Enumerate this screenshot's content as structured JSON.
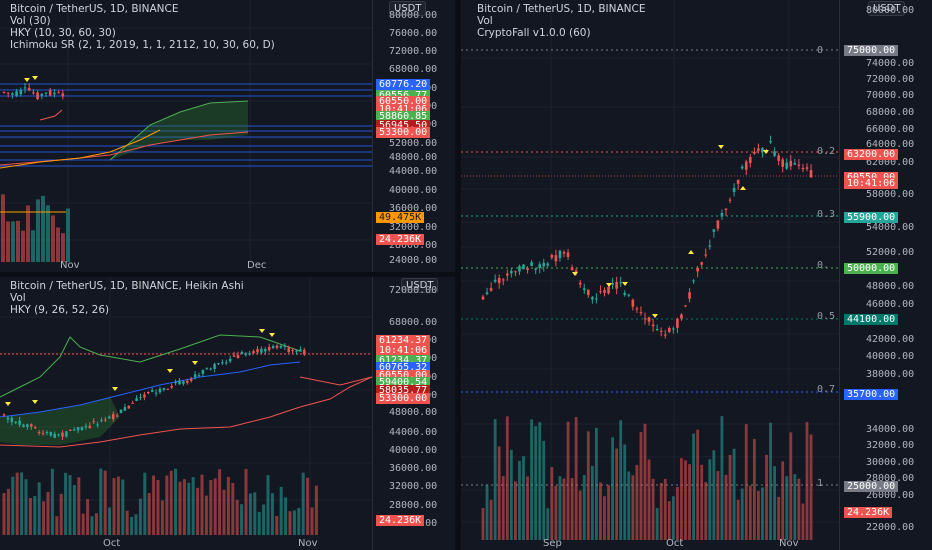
{
  "colors": {
    "up": "#26a69a",
    "down": "#ef5350",
    "bg": "#131722",
    "blue": "#2962ff",
    "green": "#4caf50",
    "orange": "#ff9800",
    "red": "#f23645"
  },
  "pane1": {
    "legend": [
      "Bitcoin / TetherUS, 1D, BINANCE",
      "Vol (30)",
      "HKY (10, 30, 60, 30)",
      "Ichimoku SR (2, 1, 2019, 1, 1, 2112, 10, 30, 60, D)"
    ],
    "unit": "USDT",
    "ticks": [
      "80000.00",
      "76000.00",
      "72000.00",
      "68000.00",
      "64000.00",
      "60000.00",
      "56000.00",
      "52000.00",
      "48000.00",
      "44000.00",
      "40000.00",
      "36000.00",
      "32000.00",
      "28000.00",
      "24000.00"
    ],
    "tags": [
      {
        "text": "60776.20",
        "color": "#2962ff"
      },
      {
        "text": "60556.77",
        "color": "#4caf50"
      },
      {
        "text": "60550.00",
        "color": "#ef5350"
      },
      {
        "text": "10:41:06",
        "color": "#ef5350"
      },
      {
        "text": "58860.85",
        "color": "#4caf50"
      },
      {
        "text": "56945.50",
        "color": "#b71c1c"
      },
      {
        "text": "53300.00",
        "color": "#ef5350"
      },
      {
        "text": "49.475K",
        "color": "#ff9800"
      },
      {
        "text": "24.236K",
        "color": "#ef5350"
      }
    ],
    "time_labels": [
      "Nov",
      "Dec"
    ]
  },
  "pane2": {
    "legend": [
      "Bitcoin / TetherUS, 1D, BINANCE, Heikin Ashi",
      "Vol",
      "HKY (9, 26, 52, 26)"
    ],
    "unit": "USDT",
    "ticks": [
      "72000.00",
      "68000.00",
      "64000.00",
      "60000.00",
      "56000.00",
      "52000.00",
      "48000.00",
      "44000.00",
      "40000.00",
      "36000.00",
      "32000.00",
      "28000.00",
      "24000.00"
    ],
    "tags": [
      {
        "text": "61234.37",
        "color": "#ef5350"
      },
      {
        "text": "10:41:06",
        "color": "#ef5350"
      },
      {
        "text": "61234.37",
        "color": "#4caf50"
      },
      {
        "text": "60765.32",
        "color": "#2962ff"
      },
      {
        "text": "60550.00",
        "color": "#ef5350"
      },
      {
        "text": "59400.54",
        "color": "#4caf50"
      },
      {
        "text": "58035.77",
        "color": "#b71c1c"
      },
      {
        "text": "53300.00",
        "color": "#ef5350"
      },
      {
        "text": "24.236K",
        "color": "#ef5350"
      }
    ],
    "time_labels": [
      "Oct",
      "Nov"
    ]
  },
  "pane3": {
    "legend": [
      "Bitcoin / TetherUS, 1D, BINANCE",
      "Vol",
      "CryptoFall v1.0.0 (60)"
    ],
    "unit": "USDT",
    "ticks": [
      "80000.00",
      "74000.00",
      "72000.00",
      "70000.00",
      "68000.00",
      "66000.00",
      "64000.00",
      "62000.00",
      "58000.00",
      "54000.00",
      "52000.00",
      "48000.00",
      "46000.00",
      "42000.00",
      "40000.00",
      "38000.00",
      "34000.00",
      "32000.00",
      "30000.00",
      "28000.00",
      "26000.00",
      "22000.00"
    ],
    "fib_labels": [
      "0",
      "0.2",
      "0.3",
      "0.",
      "0.5",
      "0.7",
      "1"
    ],
    "tags": [
      {
        "text": "75000.00",
        "color": "#787b86"
      },
      {
        "text": "63200.00",
        "color": "#ef5350"
      },
      {
        "text": "60550.00",
        "color": "#ef5350"
      },
      {
        "text": "10:41:06",
        "color": "#ef5350"
      },
      {
        "text": "55900.00",
        "color": "#26a69a"
      },
      {
        "text": "50000.00",
        "color": "#4caf50"
      },
      {
        "text": "44100.00",
        "color": "#00796b"
      },
      {
        "text": "35700.00",
        "color": "#2962ff"
      },
      {
        "text": "25000.00",
        "color": "#787b86"
      },
      {
        "text": "24.236K",
        "color": "#ef5350"
      }
    ],
    "time_labels": [
      "Sep",
      "Oct",
      "Nov"
    ]
  }
}
